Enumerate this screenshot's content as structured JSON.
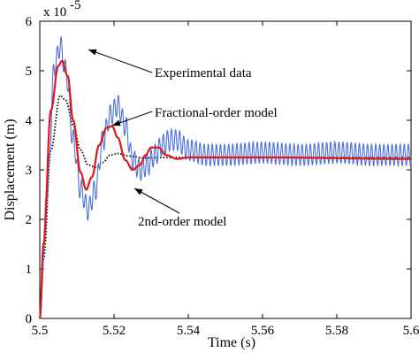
{
  "chart_data": {
    "type": "line",
    "xlabel": "Time (s)",
    "ylabel": "Displacement (m)",
    "xlim": [
      5.5,
      5.6
    ],
    "ylim": [
      0,
      6
    ],
    "y_multiplier_label": "x 10",
    "y_multiplier_exponent": "-5",
    "xticks": [
      "5.5",
      "5.52",
      "5.54",
      "5.56",
      "5.58",
      "5.6"
    ],
    "yticks": [
      "0",
      "1",
      "2",
      "3",
      "4",
      "5",
      "6"
    ],
    "grid": false,
    "series": [
      {
        "name": "Experimental data",
        "color": "#4a6fd8",
        "style": "solid",
        "x": [
          5.5,
          5.502,
          5.504,
          5.5055,
          5.507,
          5.509,
          5.511,
          5.513,
          5.515,
          5.517,
          5.519,
          5.521,
          5.523,
          5.525,
          5.527,
          5.529,
          5.531,
          5.533,
          5.535,
          5.537,
          5.54,
          5.545,
          5.55,
          5.56,
          5.57,
          5.58,
          5.59,
          5.6
        ],
        "values": [
          0,
          2.6,
          5.1,
          5.5,
          5.0,
          3.6,
          2.6,
          2.2,
          2.6,
          3.6,
          4.1,
          4.3,
          3.9,
          3.2,
          3.0,
          3.1,
          3.3,
          3.5,
          3.6,
          3.6,
          3.4,
          3.3,
          3.3,
          3.35,
          3.3,
          3.35,
          3.3,
          3.3
        ],
        "oscillation_amplitude": 0.22
      },
      {
        "name": "Fractional-order model",
        "color": "#e01818",
        "style": "solid",
        "x": [
          5.5,
          5.501,
          5.503,
          5.505,
          5.506,
          5.5075,
          5.509,
          5.511,
          5.5125,
          5.514,
          5.516,
          5.518,
          5.5195,
          5.521,
          5.523,
          5.525,
          5.527,
          5.5285,
          5.53,
          5.532,
          5.534,
          5.537,
          5.54,
          5.55,
          5.56,
          5.6
        ],
        "values": [
          0,
          1.5,
          4.2,
          5.1,
          5.2,
          4.9,
          4.0,
          2.95,
          2.6,
          2.85,
          3.5,
          3.85,
          3.88,
          3.65,
          3.2,
          3.0,
          3.1,
          3.3,
          3.45,
          3.45,
          3.3,
          3.22,
          3.25,
          3.25,
          3.25,
          3.22
        ]
      },
      {
        "name": "2nd-order model",
        "color": "#000000",
        "style": "dotted",
        "x": [
          5.5,
          5.501,
          5.503,
          5.5055,
          5.507,
          5.509,
          5.511,
          5.513,
          5.515,
          5.517,
          5.519,
          5.521,
          5.524,
          5.528,
          5.535,
          5.6
        ],
        "values": [
          0,
          1.2,
          3.4,
          4.5,
          4.4,
          3.9,
          3.4,
          3.1,
          3.05,
          3.15,
          3.3,
          3.33,
          3.28,
          3.24,
          3.25,
          3.25
        ]
      }
    ],
    "annotations": [
      {
        "text": "Experimental data"
      },
      {
        "text": "Fractional-order model"
      },
      {
        "text": "2nd-order model"
      }
    ]
  }
}
